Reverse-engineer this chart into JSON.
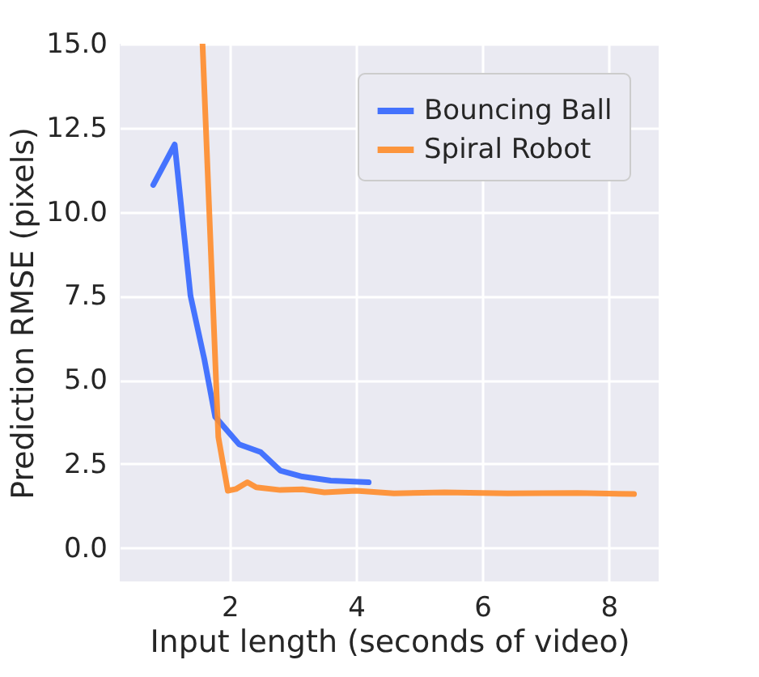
{
  "chart_data": {
    "type": "line",
    "xlabel": "Input length (seconds of video)",
    "ylabel": "Prediction RMSE (pixels)",
    "xlim": [
      0.26,
      8.79
    ],
    "ylim": [
      -1.0,
      15.0
    ],
    "xticks": [
      2,
      4,
      6,
      8
    ],
    "yticks": [
      {
        "value": 0,
        "label": "0.0"
      },
      {
        "value": 2.5,
        "label": "2.5"
      },
      {
        "value": 5,
        "label": "5.0"
      },
      {
        "value": 7.5,
        "label": "7.5"
      },
      {
        "value": 10,
        "label": "10.0"
      },
      {
        "value": 12.5,
        "label": "12.5"
      },
      {
        "value": 15,
        "label": "15.0"
      }
    ],
    "grid": true,
    "legend": "top right",
    "line_style": "solid",
    "marker": "none",
    "series": [
      {
        "name": "Bouncing Ball",
        "color": "#3366ff",
        "x": [
          0.79,
          1.13,
          1.38,
          1.6,
          1.77,
          2.15,
          2.49,
          2.8,
          3.15,
          3.6,
          4.2
        ],
        "values": [
          10.8,
          12.0,
          7.5,
          5.6,
          3.9,
          3.08,
          2.85,
          2.3,
          2.12,
          2.0,
          1.95
        ]
      },
      {
        "name": "Spiral Robot",
        "color": "#ff8c2a",
        "x": [
          1.57,
          1.82,
          1.97,
          2.1,
          2.28,
          2.42,
          2.8,
          3.15,
          3.5,
          4.0,
          4.6,
          5.4,
          6.4,
          7.5,
          8.4
        ],
        "values": [
          15.0,
          3.3,
          1.7,
          1.75,
          1.95,
          1.8,
          1.72,
          1.74,
          1.65,
          1.7,
          1.62,
          1.65,
          1.62,
          1.63,
          1.6
        ]
      }
    ]
  }
}
